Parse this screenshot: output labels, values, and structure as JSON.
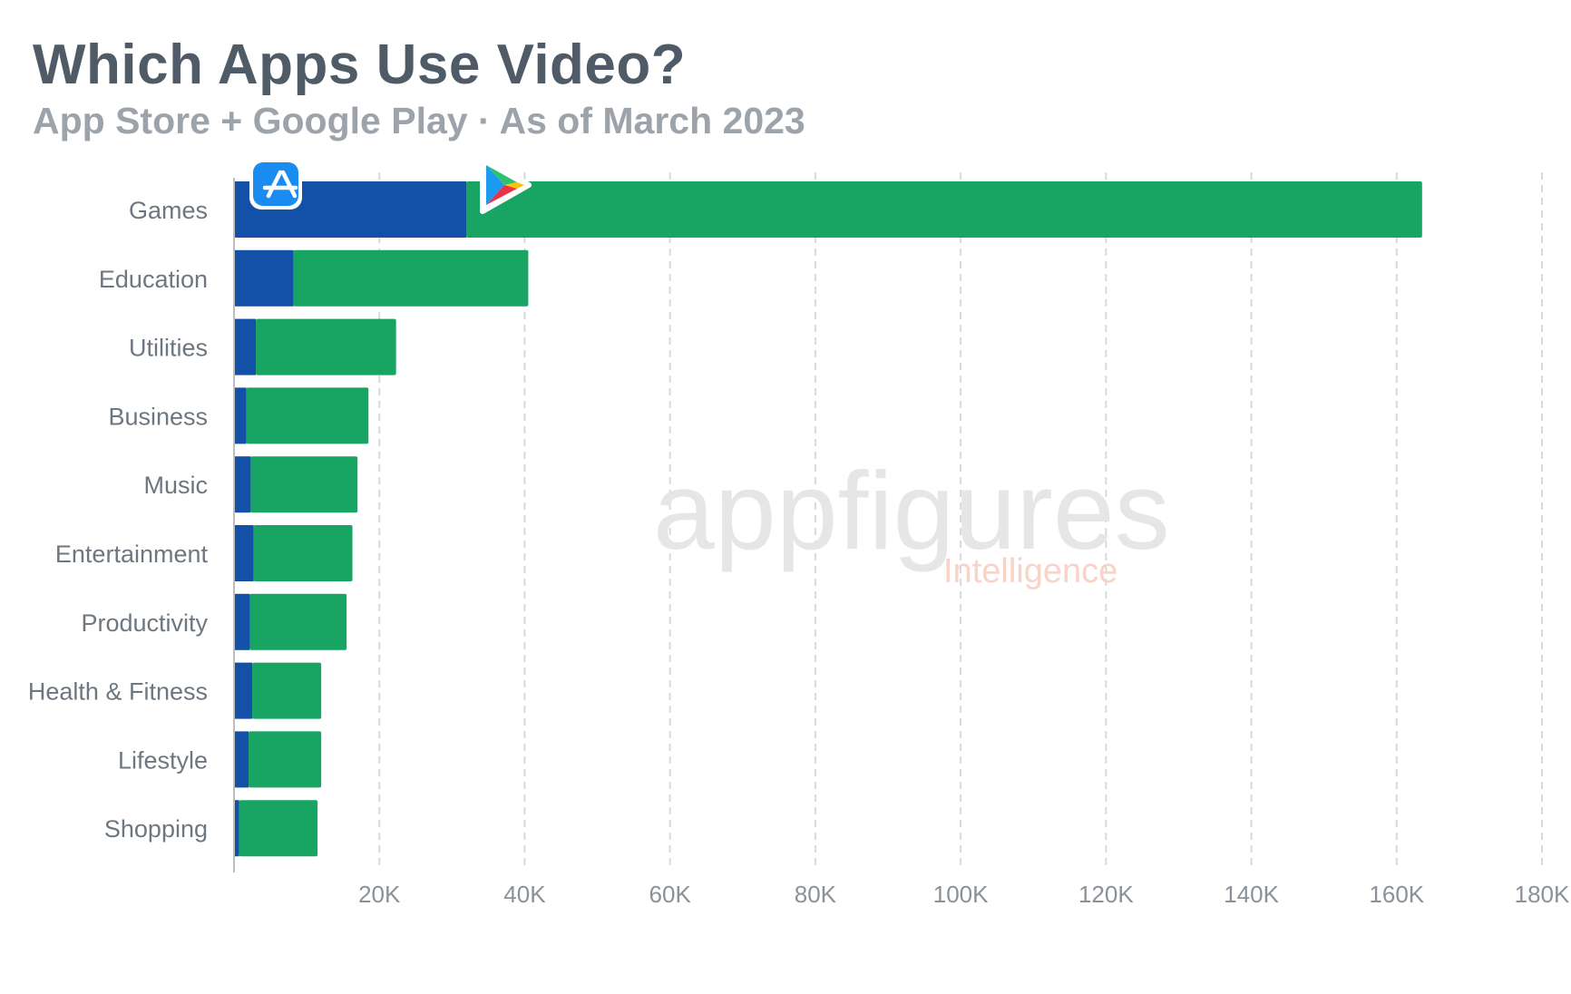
{
  "header": {
    "title": "Which Apps Use Video?",
    "subtitle": "App Store + Google Play · As of March 2023"
  },
  "watermark": {
    "brand": "appfigures",
    "product": "Intelligence"
  },
  "legend": [
    {
      "icon": "app-store-icon",
      "color": "#1350a8"
    },
    {
      "icon": "google-play-icon",
      "color": "#18a462"
    }
  ],
  "chart_data": {
    "type": "bar",
    "orientation": "horizontal",
    "stacked": true,
    "title": "Which Apps Use Video?",
    "subtitle": "App Store + Google Play · As of March 2023",
    "categories": [
      "Games",
      "Education",
      "Utilities",
      "Business",
      "Music",
      "Entertainment",
      "Productivity",
      "Health & Fitness",
      "Lifestyle",
      "Shopping"
    ],
    "series": [
      {
        "icon": "app-store-icon",
        "color": "#1350a8",
        "values": [
          32000,
          8200,
          3000,
          1700,
          2300,
          2700,
          2200,
          2500,
          2000,
          700
        ]
      },
      {
        "icon": "google-play-icon",
        "color": "#18a462",
        "values": [
          131500,
          32300,
          19300,
          16800,
          14700,
          13600,
          13300,
          9500,
          10000,
          10800
        ]
      }
    ],
    "xlim": [
      0,
      180000
    ],
    "xticks": [
      20000,
      40000,
      60000,
      80000,
      100000,
      120000,
      140000,
      160000,
      180000
    ],
    "xtick_labels": [
      "20K",
      "40K",
      "60K",
      "80K",
      "100K",
      "120K",
      "140K",
      "160K",
      "180K"
    ],
    "grid": "vertical dashed",
    "legend": "icons at top of first bar"
  }
}
